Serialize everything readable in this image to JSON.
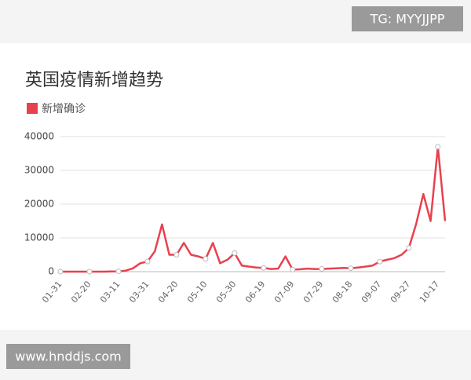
{
  "watermarks": {
    "top": "TG: MYYJJPP",
    "bottom": "www.hnddjs.com"
  },
  "chart_data": {
    "type": "line",
    "title": "英国疫情新增趋势",
    "categories": [
      "01-31",
      null,
      null,
      null,
      "02-20",
      null,
      null,
      null,
      "03-11",
      null,
      null,
      null,
      "03-31",
      null,
      null,
      null,
      "04-20",
      null,
      null,
      null,
      "05-10",
      null,
      null,
      null,
      "05-30",
      null,
      null,
      null,
      "06-19",
      null,
      null,
      null,
      "07-09",
      null,
      null,
      null,
      "07-29",
      null,
      null,
      null,
      "08-18",
      null,
      null,
      null,
      "09-07",
      null,
      null,
      null,
      "09-27",
      null,
      null,
      null,
      "10-17",
      null
    ],
    "series": [
      {
        "name": "新增确诊",
        "color": "#e8414e",
        "values": [
          0,
          0,
          0,
          0,
          0,
          0,
          10,
          50,
          100,
          300,
          1000,
          2500,
          3000,
          6000,
          14000,
          5000,
          5000,
          8500,
          5000,
          4500,
          3800,
          8500,
          2500,
          3500,
          5500,
          1800,
          1500,
          1200,
          1100,
          800,
          900,
          4500,
          600,
          700,
          900,
          800,
          800,
          900,
          1000,
          1100,
          1000,
          1200,
          1500,
          1800,
          3000,
          3500,
          4000,
          5000,
          7000,
          14000,
          23000,
          15000,
          37000,
          15000
        ]
      }
    ],
    "ylim": [
      0,
      40000
    ],
    "yticks": [
      0,
      10000,
      20000,
      30000,
      40000
    ],
    "grid": true,
    "legend": "top-left"
  }
}
